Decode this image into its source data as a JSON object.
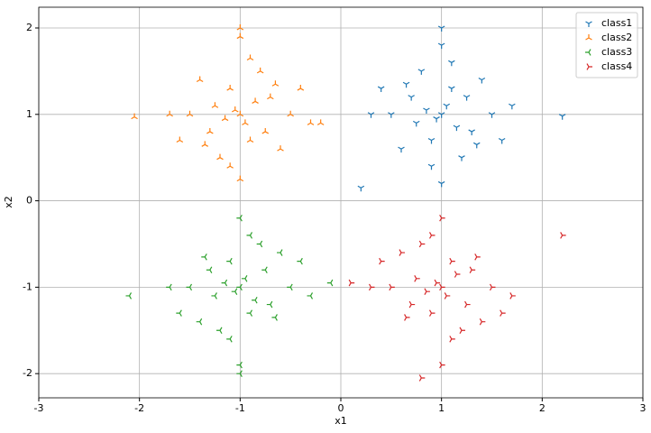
{
  "chart_data": {
    "type": "scatter",
    "xlabel": "x1",
    "ylabel": "x2",
    "xlim": [
      -3,
      3
    ],
    "ylim": [
      -2.28,
      2.24
    ],
    "xticks": [
      -3,
      -2,
      -1,
      0,
      1,
      2,
      3
    ],
    "yticks": [
      -2,
      -1,
      0,
      1,
      2
    ],
    "grid": true,
    "legend": "upper right",
    "series": [
      {
        "name": "class1",
        "color": "#1f77b4",
        "marker": "tri_down",
        "x": [
          1.0,
          0.7,
          1.3,
          0.9,
          1.1,
          0.5,
          1.5,
          0.8,
          1.2,
          1.0,
          0.6,
          1.4,
          0.95,
          1.05,
          0.75,
          1.25,
          0.4,
          1.6,
          1.0,
          0.85,
          1.15,
          0.3,
          1.7,
          1.0,
          2.2,
          0.2,
          1.1,
          0.9,
          0.65,
          1.35
        ],
        "y": [
          1.0,
          1.2,
          0.8,
          0.7,
          1.3,
          1.0,
          1.0,
          1.5,
          0.5,
          1.8,
          0.6,
          1.4,
          0.95,
          1.1,
          0.9,
          1.2,
          1.3,
          0.7,
          0.2,
          1.05,
          0.85,
          1.0,
          1.1,
          2.0,
          0.98,
          0.15,
          1.6,
          0.4,
          1.35,
          0.65
        ]
      },
      {
        "name": "class2",
        "color": "#ff7f0e",
        "marker": "tri_up",
        "x": [
          -1.0,
          -1.3,
          -0.7,
          -1.1,
          -0.9,
          -1.5,
          -0.5,
          -1.2,
          -0.8,
          -1.0,
          -1.4,
          -0.6,
          -1.05,
          -0.95,
          -1.25,
          -0.75,
          -1.6,
          -0.4,
          -1.0,
          -1.15,
          -0.85,
          -1.7,
          -0.3,
          -1.0,
          -2.05,
          -0.2,
          -0.9,
          -1.1,
          -1.35,
          -0.65
        ],
        "y": [
          1.0,
          0.8,
          1.2,
          1.3,
          0.7,
          1.0,
          1.0,
          0.5,
          1.5,
          1.9,
          1.4,
          0.6,
          1.05,
          0.9,
          1.1,
          0.8,
          0.7,
          1.3,
          0.25,
          0.95,
          1.15,
          1.0,
          0.9,
          2.0,
          0.97,
          0.9,
          1.65,
          0.4,
          0.65,
          1.35
        ]
      },
      {
        "name": "class3",
        "color": "#2ca02c",
        "marker": "tri_left",
        "x": [
          -1.0,
          -1.3,
          -0.7,
          -1.1,
          -0.9,
          -1.5,
          -0.5,
          -1.2,
          -0.8,
          -1.0,
          -1.4,
          -0.6,
          -1.05,
          -0.95,
          -1.25,
          -0.75,
          -1.6,
          -0.4,
          -1.0,
          -1.15,
          -0.85,
          -1.7,
          -0.3,
          -1.0,
          -2.1,
          -0.1,
          -0.9,
          -1.1,
          -1.35,
          -0.65
        ],
        "y": [
          -1.0,
          -0.8,
          -1.2,
          -0.7,
          -1.3,
          -1.0,
          -1.0,
          -1.5,
          -0.5,
          -0.2,
          -1.4,
          -0.6,
          -1.05,
          -0.9,
          -1.1,
          -0.8,
          -1.3,
          -0.7,
          -1.9,
          -0.95,
          -1.15,
          -1.0,
          -1.1,
          -2.0,
          -1.1,
          -0.95,
          -0.4,
          -1.6,
          -0.65,
          -1.35
        ]
      },
      {
        "name": "class4",
        "color": "#d62728",
        "marker": "tri_right",
        "x": [
          1.0,
          0.7,
          1.3,
          0.9,
          1.1,
          0.5,
          1.5,
          0.8,
          1.2,
          1.0,
          0.6,
          1.4,
          0.95,
          1.05,
          0.75,
          1.25,
          0.4,
          1.6,
          1.0,
          0.85,
          1.15,
          0.3,
          1.7,
          0.8,
          2.2,
          0.1,
          1.1,
          0.9,
          0.65,
          1.35
        ],
        "y": [
          -1.0,
          -1.2,
          -0.8,
          -1.3,
          -0.7,
          -1.0,
          -1.0,
          -0.5,
          -1.5,
          -0.2,
          -0.6,
          -1.4,
          -0.95,
          -1.1,
          -0.9,
          -1.2,
          -0.7,
          -1.3,
          -1.9,
          -1.05,
          -0.85,
          -1.0,
          -1.1,
          -2.05,
          -0.4,
          -0.95,
          -1.6,
          -0.4,
          -1.35,
          -0.65
        ]
      }
    ]
  }
}
